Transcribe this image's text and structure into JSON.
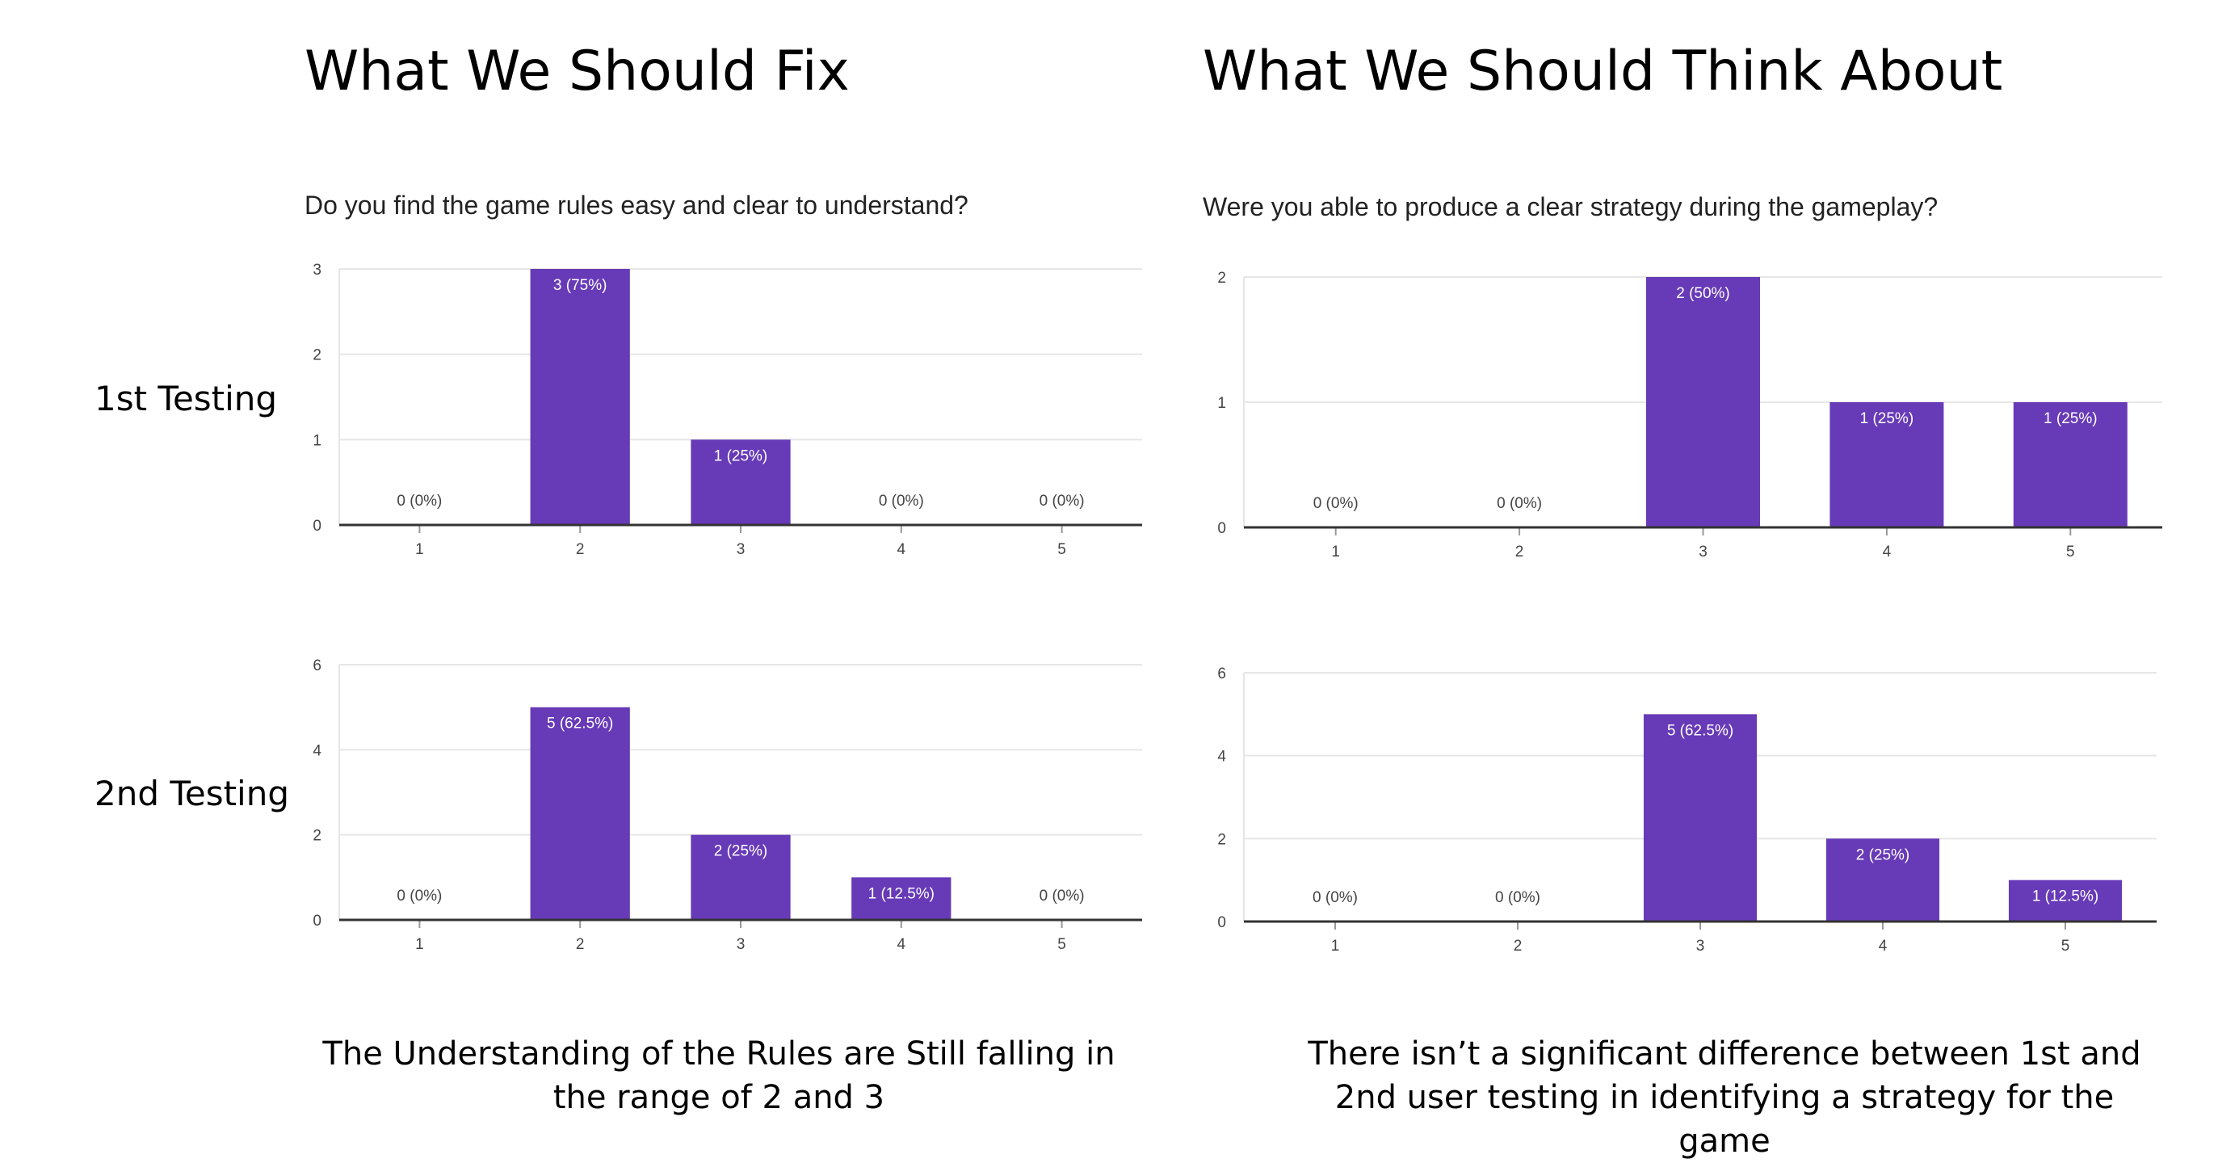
{
  "headings": {
    "left": "What We Should Fix",
    "right": "What We Should Think About"
  },
  "row_labels": {
    "first": "1st Testing",
    "second": "2nd Testing"
  },
  "questions": {
    "left": "Do you find the game rules easy and clear to understand?",
    "right": "Were you able to produce a clear strategy during the gameplay?"
  },
  "summaries": {
    "left": "The Understanding of the Rules are Still falling in the range of 2 and 3",
    "right": "There isn’t a significant difference between 1st and 2nd user testing in identifying a strategy for the game"
  },
  "colors": {
    "bar": "#673ab7",
    "grid": "#e6e6e6",
    "axis": "#333333"
  },
  "chart_data": [
    {
      "type": "bar",
      "title": "Do you find the game rules easy and clear to understand?",
      "categories": [
        "1",
        "2",
        "3",
        "4",
        "5"
      ],
      "values": [
        0,
        3,
        1,
        0,
        0
      ],
      "labels": [
        "0 (0%)",
        "3 (75%)",
        "1 (25%)",
        "0 (0%)",
        "0 (0%)"
      ],
      "ylim": [
        0,
        3
      ],
      "yticks": [
        0,
        1,
        2,
        3
      ],
      "grid": true
    },
    {
      "type": "bar",
      "title": "Were you able to produce a clear strategy during the gameplay?",
      "categories": [
        "1",
        "2",
        "3",
        "4",
        "5"
      ],
      "values": [
        0,
        0,
        2,
        1,
        1
      ],
      "labels": [
        "0 (0%)",
        "0 (0%)",
        "2 (50%)",
        "1 (25%)",
        "1 (25%)"
      ],
      "ylim": [
        0,
        2
      ],
      "yticks": [
        0,
        1,
        2
      ],
      "grid": true
    },
    {
      "type": "bar",
      "title": "Do you find the game rules easy and clear to understand?",
      "categories": [
        "1",
        "2",
        "3",
        "4",
        "5"
      ],
      "values": [
        0,
        5,
        2,
        1,
        0
      ],
      "labels": [
        "0 (0%)",
        "5 (62.5%)",
        "2 (25%)",
        "1 (12.5%)",
        "0 (0%)"
      ],
      "ylim": [
        0,
        6
      ],
      "yticks": [
        0,
        2,
        4,
        6
      ],
      "grid": true
    },
    {
      "type": "bar",
      "title": "Were you able to produce a clear strategy during the gameplay?",
      "categories": [
        "1",
        "2",
        "3",
        "4",
        "5"
      ],
      "values": [
        0,
        0,
        5,
        2,
        1
      ],
      "labels": [
        "0 (0%)",
        "0 (0%)",
        "5 (62.5%)",
        "2 (25%)",
        "1 (12.5%)"
      ],
      "ylim": [
        0,
        6
      ],
      "yticks": [
        0,
        2,
        4,
        6
      ],
      "grid": true
    }
  ]
}
